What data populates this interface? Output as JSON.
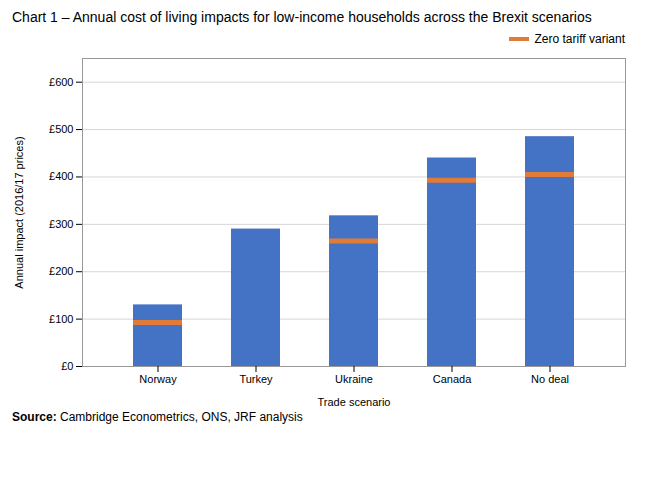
{
  "chart_data": {
    "type": "bar",
    "title": "Chart 1 – Annual cost of living impacts for low-income households across the Brexit scenarios",
    "categories": [
      "Norway",
      "Turkey",
      "Ukraine",
      "Canada",
      "No deal"
    ],
    "values": [
      130,
      290,
      318,
      440,
      485
    ],
    "color": "#4472C4",
    "markers": {
      "name": "Zero tariff variant",
      "color": "#E07B39",
      "values": [
        93,
        null,
        265,
        393,
        405
      ]
    },
    "xlabel": "Trade scenario",
    "ylabel": "Annual impact (2016/17 prices)",
    "ylim": [
      0,
      650
    ],
    "yticks": [
      {
        "value": 0,
        "label": "£0"
      },
      {
        "value": 100,
        "label": "£100"
      },
      {
        "value": 200,
        "label": "£200"
      },
      {
        "value": 300,
        "label": "£300"
      },
      {
        "value": 400,
        "label": "£400"
      },
      {
        "value": 500,
        "label": "£500"
      },
      {
        "value": 600,
        "label": "£600"
      }
    ],
    "grid": true,
    "legend": "upper right",
    "source_label": "Source:",
    "source": "Cambridge Econometrics, ONS, JRF analysis"
  }
}
